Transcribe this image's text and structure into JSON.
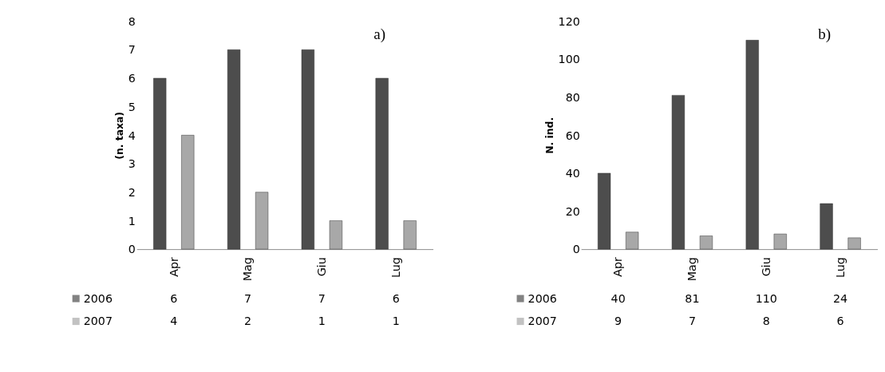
{
  "chart_data": [
    {
      "type": "bar",
      "ylabel": "(n. taxa)",
      "annotations": [
        "a)"
      ],
      "categories": [
        "Apr",
        "Mag",
        "Giu",
        "Lug"
      ],
      "series": [
        {
          "name": "2006",
          "color": "#4d4d4d",
          "values": [
            6,
            7,
            7,
            6
          ]
        },
        {
          "name": "2007",
          "color": "#a8a8a8",
          "values": [
            4,
            2,
            1,
            1
          ]
        }
      ],
      "ylim": [
        0,
        8
      ],
      "yticks": [
        0,
        1,
        2,
        3,
        4,
        5,
        6,
        7,
        8
      ],
      "grid": false,
      "legend": "bottom",
      "data_labels": true
    },
    {
      "type": "bar",
      "ylabel": "N. ind.",
      "annotations": [
        "b)"
      ],
      "categories": [
        "Apr",
        "Mag",
        "Giu",
        "Lug"
      ],
      "series": [
        {
          "name": "2006",
          "color": "#4d4d4d",
          "values": [
            40,
            81,
            110,
            24
          ]
        },
        {
          "name": "2007",
          "color": "#a8a8a8",
          "values": [
            9,
            7,
            8,
            6
          ]
        }
      ],
      "ylim": [
        0,
        120
      ],
      "yticks": [
        0,
        20,
        40,
        60,
        80,
        100,
        120
      ],
      "grid": false,
      "legend": "bottom",
      "data_labels": true
    }
  ]
}
